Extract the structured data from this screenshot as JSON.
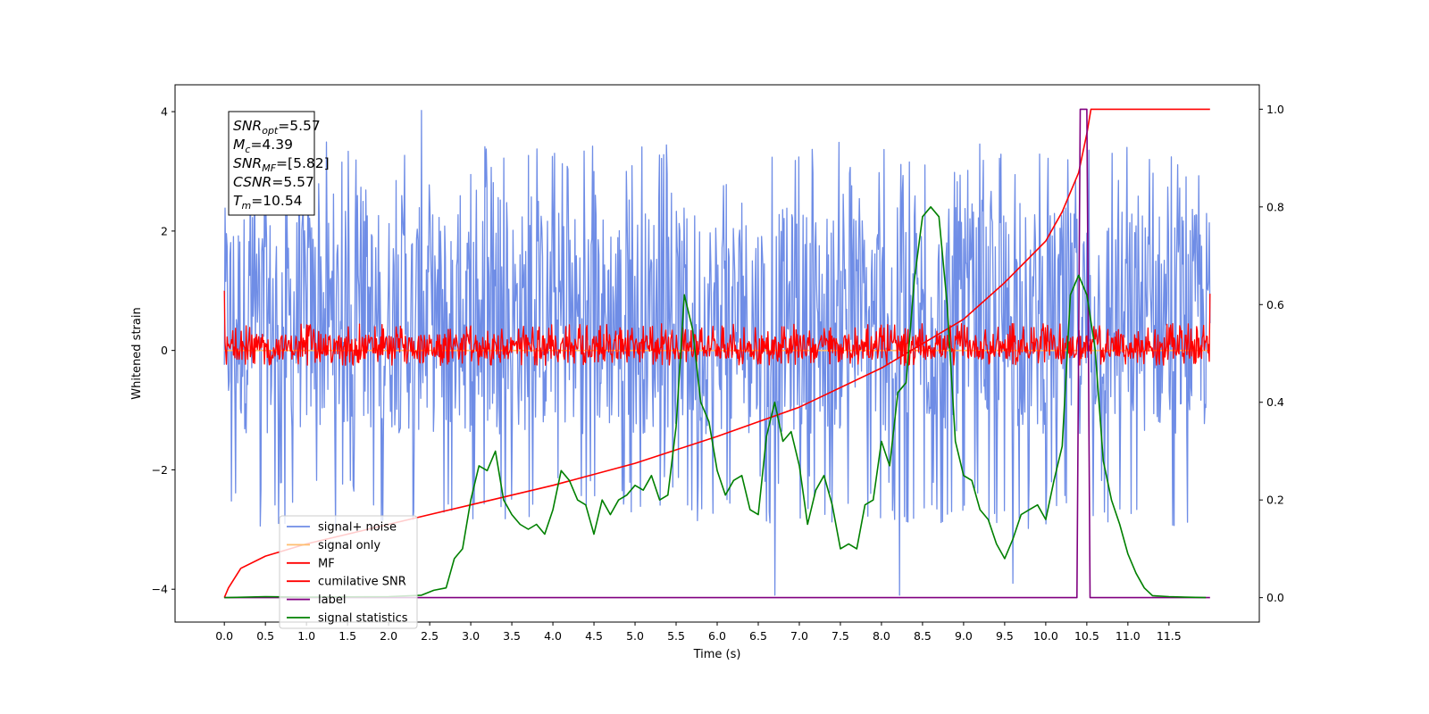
{
  "chart_data": {
    "type": "line",
    "xlabel": "Time (s)",
    "ylabel": "Whitened strain",
    "xlim": [
      -0.6,
      12.6
    ],
    "ylim": [
      -4.55,
      4.45
    ],
    "y2lim": [
      -0.05,
      1.05
    ],
    "xticks": [
      "0.0",
      "0.5",
      "1.0",
      "1.5",
      "2.0",
      "2.5",
      "3.0",
      "3.5",
      "4.0",
      "4.5",
      "5.0",
      "5.5",
      "6.0",
      "6.5",
      "7.0",
      "7.5",
      "8.0",
      "8.5",
      "9.0",
      "9.5",
      "10.0",
      "10.5",
      "11.0",
      "11.5"
    ],
    "yticks": [
      "4",
      "2",
      "0",
      "−2",
      "−4"
    ],
    "y2ticks": [
      "1.0",
      "0.8",
      "0.6",
      "0.4",
      "0.2",
      "0.0"
    ],
    "grid": false,
    "legend_position": "lower-left",
    "annotation": {
      "lines": [
        {
          "base": "SNR",
          "sub": "opt",
          "value": "=5.57"
        },
        {
          "base": "M",
          "sub": "c",
          "value": "=4.39"
        },
        {
          "base": "SNR",
          "sub": "MF",
          "value": "=[5.82]"
        },
        {
          "base": "CSNR",
          "sub": "",
          "value": "=5.57"
        },
        {
          "base": "T",
          "sub": "m",
          "value": "=10.54"
        }
      ]
    },
    "series": [
      {
        "name": "signal+ noise",
        "color": "#6f8de6",
        "axis": "left",
        "style": "noise",
        "x_range": [
          0,
          12.0
        ],
        "envelope": [
          -3.0,
          3.5
        ],
        "typical": [
          -1.4,
          2.4
        ],
        "spikes": [
          [
            2.4,
            4.02
          ],
          [
            6.7,
            -4.1
          ],
          [
            8.22,
            -4.1
          ],
          [
            9.6,
            -3.9
          ]
        ]
      },
      {
        "name": "signal only",
        "color": "#ffbe6f",
        "axis": "left",
        "style": "flat",
        "x_range": [
          0,
          12.0
        ],
        "values": [
          0,
          0
        ]
      },
      {
        "name": "MF",
        "color": "#ff0000",
        "axis": "left",
        "style": "noise",
        "x_range": [
          0,
          12.0
        ],
        "envelope": [
          -0.25,
          0.45
        ],
        "start_value": 1.0,
        "end_value": 0.95
      },
      {
        "name": "cumilative SNR",
        "color": "#ff0000",
        "axis": "right",
        "x": [
          0.0,
          0.05,
          0.2,
          0.5,
          1.0,
          2.0,
          3.0,
          4.0,
          5.0,
          6.0,
          7.0,
          8.0,
          8.5,
          9.0,
          9.5,
          10.0,
          10.2,
          10.4,
          10.5,
          10.55,
          12.0
        ],
        "values": [
          0.0,
          0.02,
          0.06,
          0.085,
          0.11,
          0.15,
          0.19,
          0.23,
          0.275,
          0.33,
          0.39,
          0.47,
          0.52,
          0.57,
          0.645,
          0.73,
          0.79,
          0.87,
          0.95,
          1.0,
          1.0
        ]
      },
      {
        "name": "label",
        "color": "#800080",
        "axis": "right",
        "x": [
          0.0,
          10.38,
          10.42,
          10.5,
          10.54,
          12.0
        ],
        "values": [
          0.0,
          0.0,
          1.0,
          1.0,
          0.0,
          0.0
        ]
      },
      {
        "name": "signal statistics",
        "color": "#008000",
        "axis": "right",
        "x": [
          0.0,
          0.5,
          1.0,
          2.0,
          2.4,
          2.55,
          2.7,
          2.8,
          2.9,
          3.0,
          3.1,
          3.2,
          3.3,
          3.4,
          3.5,
          3.6,
          3.7,
          3.8,
          3.9,
          4.0,
          4.1,
          4.2,
          4.3,
          4.4,
          4.5,
          4.6,
          4.7,
          4.8,
          4.9,
          5.0,
          5.1,
          5.2,
          5.3,
          5.4,
          5.5,
          5.6,
          5.7,
          5.8,
          5.9,
          6.0,
          6.1,
          6.2,
          6.3,
          6.4,
          6.5,
          6.6,
          6.7,
          6.8,
          6.9,
          7.0,
          7.1,
          7.2,
          7.3,
          7.4,
          7.5,
          7.6,
          7.7,
          7.8,
          7.9,
          8.0,
          8.1,
          8.2,
          8.3,
          8.4,
          8.5,
          8.6,
          8.7,
          8.8,
          8.9,
          9.0,
          9.1,
          9.2,
          9.3,
          9.4,
          9.5,
          9.6,
          9.7,
          9.8,
          9.9,
          10.0,
          10.1,
          10.2,
          10.3,
          10.4,
          10.5,
          10.6,
          10.7,
          10.8,
          10.9,
          11.0,
          11.1,
          11.2,
          11.3,
          11.5,
          11.7,
          11.95
        ],
        "values": [
          0.0,
          0.002,
          0.001,
          0.002,
          0.005,
          0.015,
          0.02,
          0.08,
          0.1,
          0.2,
          0.27,
          0.26,
          0.3,
          0.2,
          0.17,
          0.15,
          0.14,
          0.15,
          0.13,
          0.18,
          0.26,
          0.24,
          0.2,
          0.19,
          0.13,
          0.2,
          0.17,
          0.2,
          0.21,
          0.23,
          0.22,
          0.25,
          0.2,
          0.21,
          0.35,
          0.62,
          0.55,
          0.4,
          0.36,
          0.26,
          0.21,
          0.24,
          0.25,
          0.18,
          0.17,
          0.33,
          0.4,
          0.32,
          0.34,
          0.27,
          0.15,
          0.22,
          0.25,
          0.19,
          0.1,
          0.11,
          0.1,
          0.19,
          0.2,
          0.32,
          0.27,
          0.42,
          0.44,
          0.65,
          0.78,
          0.8,
          0.78,
          0.6,
          0.32,
          0.25,
          0.24,
          0.18,
          0.16,
          0.11,
          0.08,
          0.12,
          0.17,
          0.18,
          0.19,
          0.16,
          0.24,
          0.31,
          0.62,
          0.66,
          0.62,
          0.51,
          0.28,
          0.2,
          0.15,
          0.09,
          0.05,
          0.02,
          0.004,
          0.002,
          0.001,
          0.0
        ]
      }
    ]
  }
}
